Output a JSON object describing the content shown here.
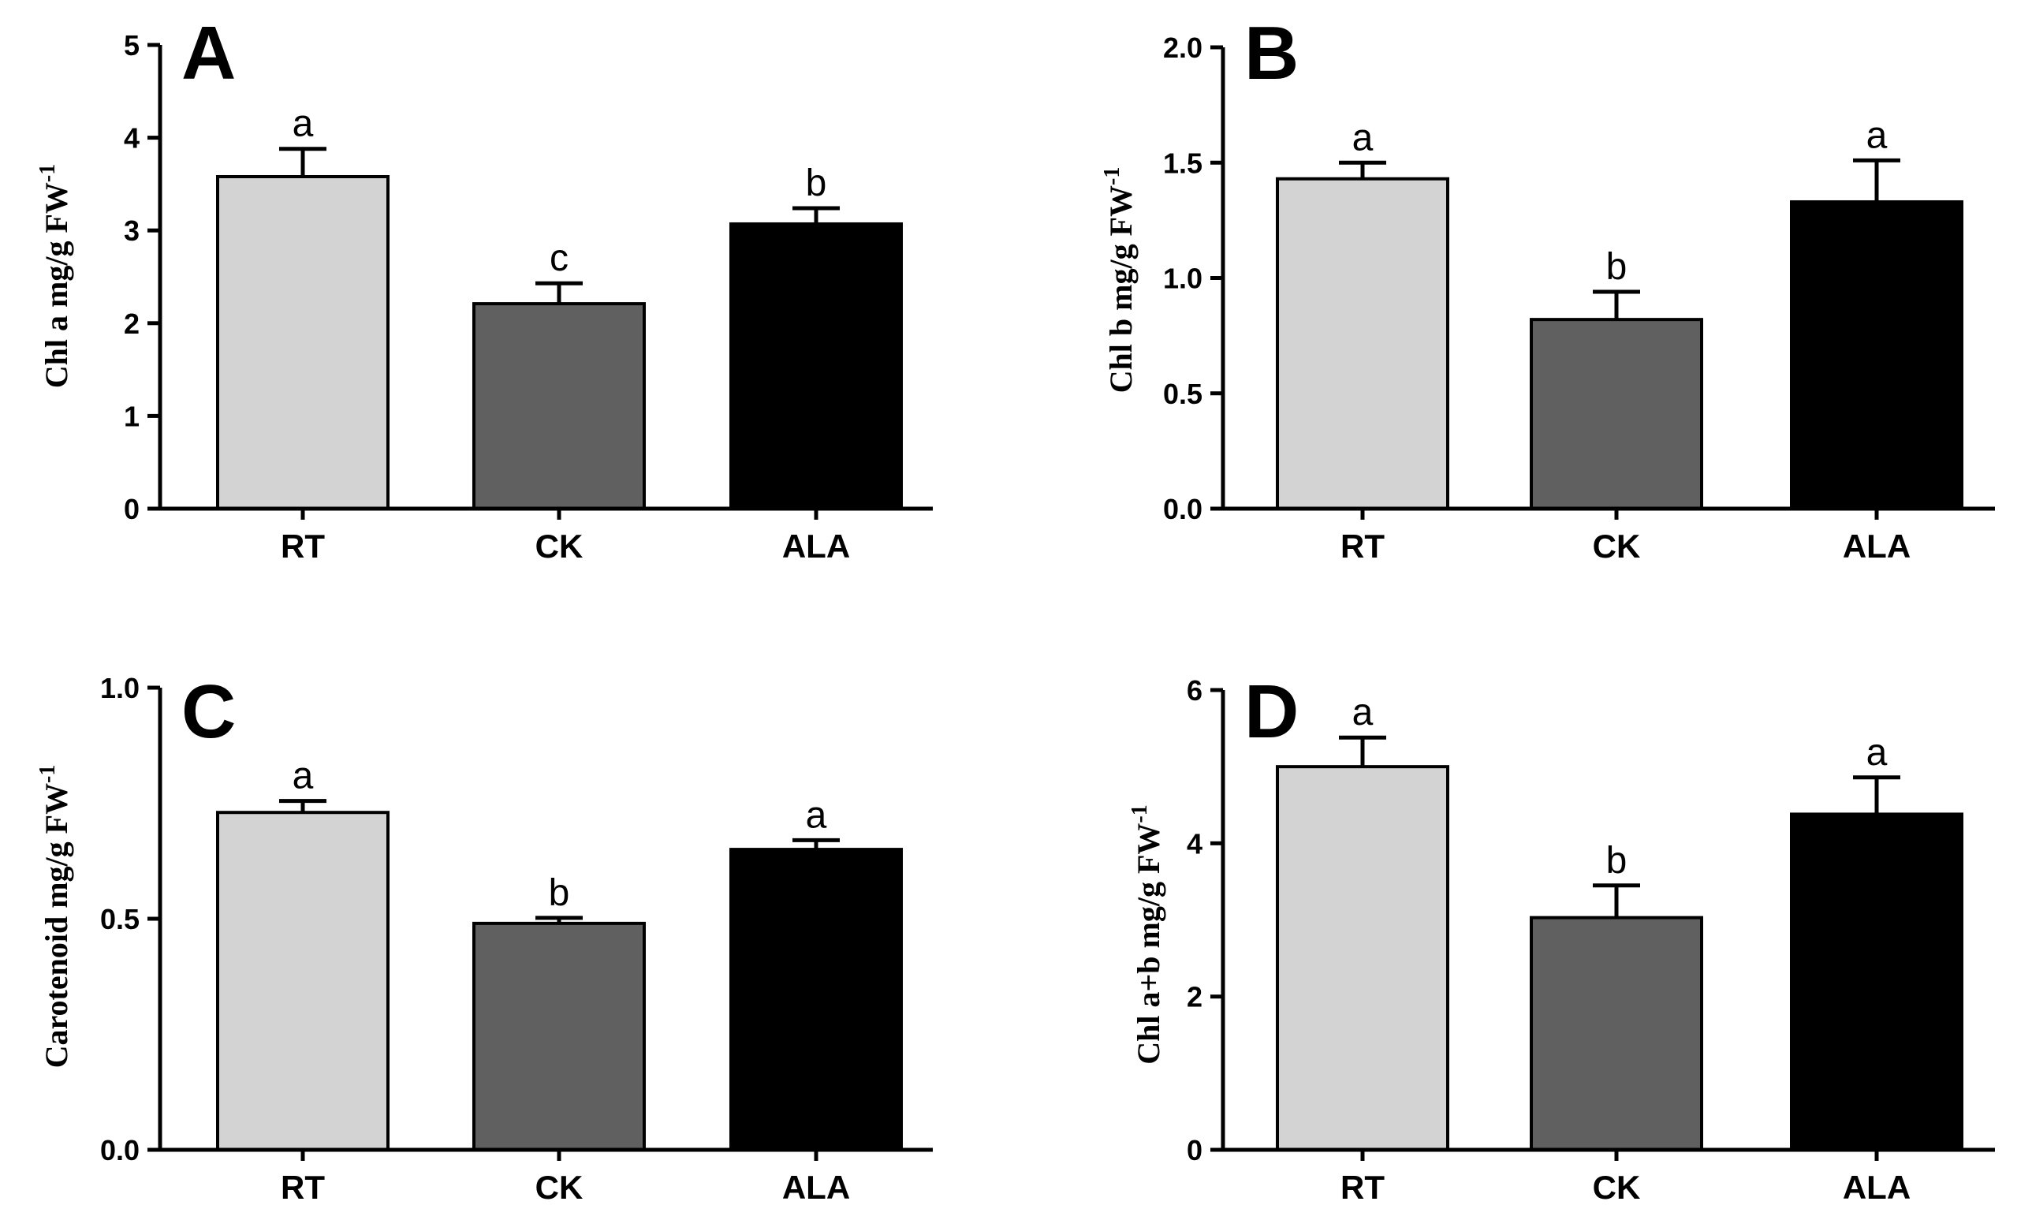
{
  "chart_data": [
    {
      "type": "bar",
      "panel_label": "A",
      "ylabel": "Chl a mg/g FW",
      "ylabel_superscript": "-1",
      "categories": [
        "RT",
        "CK",
        "ALA"
      ],
      "values": [
        3.58,
        2.21,
        3.07
      ],
      "errors": [
        0.3,
        0.22,
        0.17
      ],
      "significance": [
        "a",
        "c",
        "b"
      ],
      "ylim": [
        0,
        5
      ],
      "yticks": [
        0,
        1,
        2,
        3,
        4,
        5
      ],
      "ytick_labels": [
        "0",
        "1",
        "2",
        "3",
        "4",
        "5"
      ],
      "grid": false
    },
    {
      "type": "bar",
      "panel_label": "B",
      "ylabel": "Chl b mg/g FW",
      "ylabel_superscript": "-1",
      "categories": [
        "RT",
        "CK",
        "ALA"
      ],
      "values": [
        1.43,
        0.82,
        1.33
      ],
      "errors": [
        0.07,
        0.12,
        0.18
      ],
      "significance": [
        "a",
        "b",
        "a"
      ],
      "ylim": [
        0,
        2.0
      ],
      "yticks": [
        0,
        0.5,
        1.0,
        1.5,
        2.0
      ],
      "ytick_labels": [
        "0.0",
        "0.5",
        "1.0",
        "1.5",
        "2.0"
      ],
      "grid": false
    },
    {
      "type": "bar",
      "panel_label": "C",
      "ylabel": "Carotenoid  mg/g FW",
      "ylabel_superscript": "-1",
      "categories": [
        "RT",
        "CK",
        "ALA"
      ],
      "values": [
        0.73,
        0.49,
        0.65
      ],
      "errors": [
        0.025,
        0.012,
        0.02
      ],
      "significance": [
        "a",
        "b",
        "a"
      ],
      "ylim": [
        0,
        1.0
      ],
      "yticks": [
        0,
        0.5,
        1.0
      ],
      "ytick_labels": [
        "0.0",
        "0.5",
        "1.0"
      ],
      "grid": false
    },
    {
      "type": "bar",
      "panel_label": "D",
      "ylabel": "Chl a+b  mg/g FW",
      "ylabel_superscript": "-1",
      "categories": [
        "RT",
        "CK",
        "ALA"
      ],
      "values": [
        5.0,
        3.03,
        4.38
      ],
      "errors": [
        0.38,
        0.42,
        0.48
      ],
      "significance": [
        "a",
        "b",
        "a"
      ],
      "ylim": [
        0,
        6
      ],
      "yticks": [
        0,
        2,
        4,
        6
      ],
      "ytick_labels": [
        "0",
        "2",
        "4",
        "6"
      ],
      "grid": false
    }
  ],
  "colors": {
    "RT": "#d3d3d3",
    "CK": "#606060",
    "ALA": "#000000",
    "axis": "#000000"
  }
}
